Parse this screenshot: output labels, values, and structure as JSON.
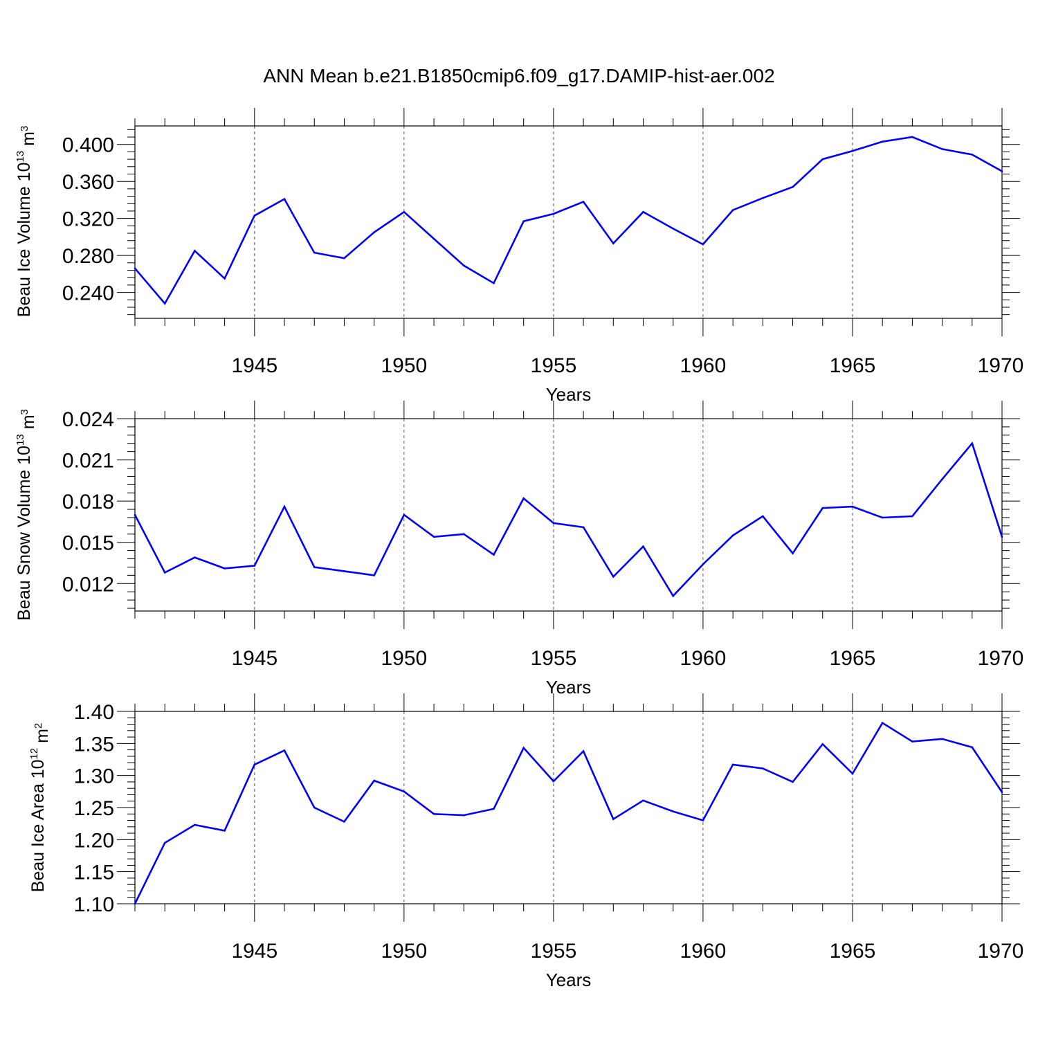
{
  "title": "ANN Mean b.e21.B1850cmip6.f09_g17.DAMIP-hist-aer.002",
  "line_color": "#0000ff",
  "chart_data": [
    {
      "type": "line",
      "ylabel": "Beau Ice Volume 10",
      "ylabel_exp": "13",
      "ylabel_unit": " m",
      "ylabel_unit_exp": "3",
      "xlabel": "Years",
      "xlim": [
        1941,
        1970
      ],
      "ylim": [
        0.212,
        0.42
      ],
      "yticks": [
        0.24,
        0.28,
        0.32,
        0.36,
        0.4
      ],
      "ytick_labels": [
        "0.240",
        "0.280",
        "0.320",
        "0.360",
        "0.400"
      ],
      "xticks": [
        1945,
        1950,
        1955,
        1960,
        1965,
        1970
      ],
      "xtick_labels": [
        "1945",
        "1950",
        "1955",
        "1960",
        "1965",
        "1970"
      ],
      "grid": "dashed vertical at major x ticks",
      "x": [
        1941,
        1942,
        1943,
        1944,
        1945,
        1946,
        1947,
        1948,
        1949,
        1950,
        1951,
        1952,
        1953,
        1954,
        1955,
        1956,
        1957,
        1958,
        1959,
        1960,
        1961,
        1962,
        1963,
        1964,
        1965,
        1966,
        1967,
        1968,
        1969,
        1970
      ],
      "series": [
        {
          "values": [
            0.266,
            0.228,
            0.285,
            0.255,
            0.323,
            0.341,
            0.283,
            0.277,
            0.305,
            0.327,
            0.298,
            0.269,
            0.25,
            0.317,
            0.325,
            0.338,
            0.293,
            0.327,
            0.309,
            0.292,
            0.329,
            0.342,
            0.354,
            0.384,
            0.393,
            0.403,
            0.408,
            0.395,
            0.389,
            0.371
          ]
        }
      ]
    },
    {
      "type": "line",
      "ylabel": "Beau Snow Volume 10",
      "ylabel_exp": "13",
      "ylabel_unit": " m",
      "ylabel_unit_exp": "3",
      "xlabel": "Years",
      "xlim": [
        1941,
        1970
      ],
      "ylim": [
        0.01,
        0.024
      ],
      "yticks": [
        0.012,
        0.015,
        0.018,
        0.021,
        0.024
      ],
      "ytick_labels": [
        "0.012",
        "0.015",
        "0.018",
        "0.021",
        "0.024"
      ],
      "xticks": [
        1945,
        1950,
        1955,
        1960,
        1965,
        1970
      ],
      "xtick_labels": [
        "1945",
        "1950",
        "1955",
        "1960",
        "1965",
        "1970"
      ],
      "grid": "dashed vertical at major x ticks",
      "x": [
        1941,
        1942,
        1943,
        1944,
        1945,
        1946,
        1947,
        1948,
        1949,
        1950,
        1951,
        1952,
        1953,
        1954,
        1955,
        1956,
        1957,
        1958,
        1959,
        1960,
        1961,
        1962,
        1963,
        1964,
        1965,
        1966,
        1967,
        1968,
        1969,
        1970
      ],
      "series": [
        {
          "values": [
            0.017,
            0.0128,
            0.0139,
            0.0131,
            0.0133,
            0.0176,
            0.0132,
            0.0129,
            0.0126,
            0.017,
            0.0154,
            0.0156,
            0.0141,
            0.0182,
            0.0164,
            0.0161,
            0.0125,
            0.0147,
            0.0111,
            0.0134,
            0.0155,
            0.0169,
            0.0142,
            0.0175,
            0.0176,
            0.0168,
            0.0169,
            0.0196,
            0.0222,
            0.0154
          ]
        }
      ]
    },
    {
      "type": "line",
      "ylabel": "Beau Ice Area 10",
      "ylabel_exp": "12",
      "ylabel_unit": " m",
      "ylabel_unit_exp": "2",
      "xlabel": "Years",
      "xlim": [
        1941,
        1970
      ],
      "ylim": [
        1.1,
        1.4
      ],
      "yticks": [
        1.1,
        1.15,
        1.2,
        1.25,
        1.3,
        1.35,
        1.4
      ],
      "ytick_labels": [
        "1.10",
        "1.15",
        "1.20",
        "1.25",
        "1.30",
        "1.35",
        "1.40"
      ],
      "xticks": [
        1945,
        1950,
        1955,
        1960,
        1965,
        1970
      ],
      "xtick_labels": [
        "1945",
        "1950",
        "1955",
        "1960",
        "1965",
        "1970"
      ],
      "grid": "dashed vertical at major x ticks",
      "x": [
        1941,
        1942,
        1943,
        1944,
        1945,
        1946,
        1947,
        1948,
        1949,
        1950,
        1951,
        1952,
        1953,
        1954,
        1955,
        1956,
        1957,
        1958,
        1959,
        1960,
        1961,
        1962,
        1963,
        1964,
        1965,
        1966,
        1967,
        1968,
        1969,
        1970
      ],
      "series": [
        {
          "values": [
            1.1,
            1.195,
            1.223,
            1.214,
            1.317,
            1.339,
            1.25,
            1.228,
            1.292,
            1.275,
            1.24,
            1.238,
            1.248,
            1.343,
            1.291,
            1.338,
            1.232,
            1.261,
            1.244,
            1.23,
            1.317,
            1.311,
            1.29,
            1.349,
            1.303,
            1.382,
            1.353,
            1.357,
            1.344,
            1.274
          ]
        }
      ]
    }
  ]
}
